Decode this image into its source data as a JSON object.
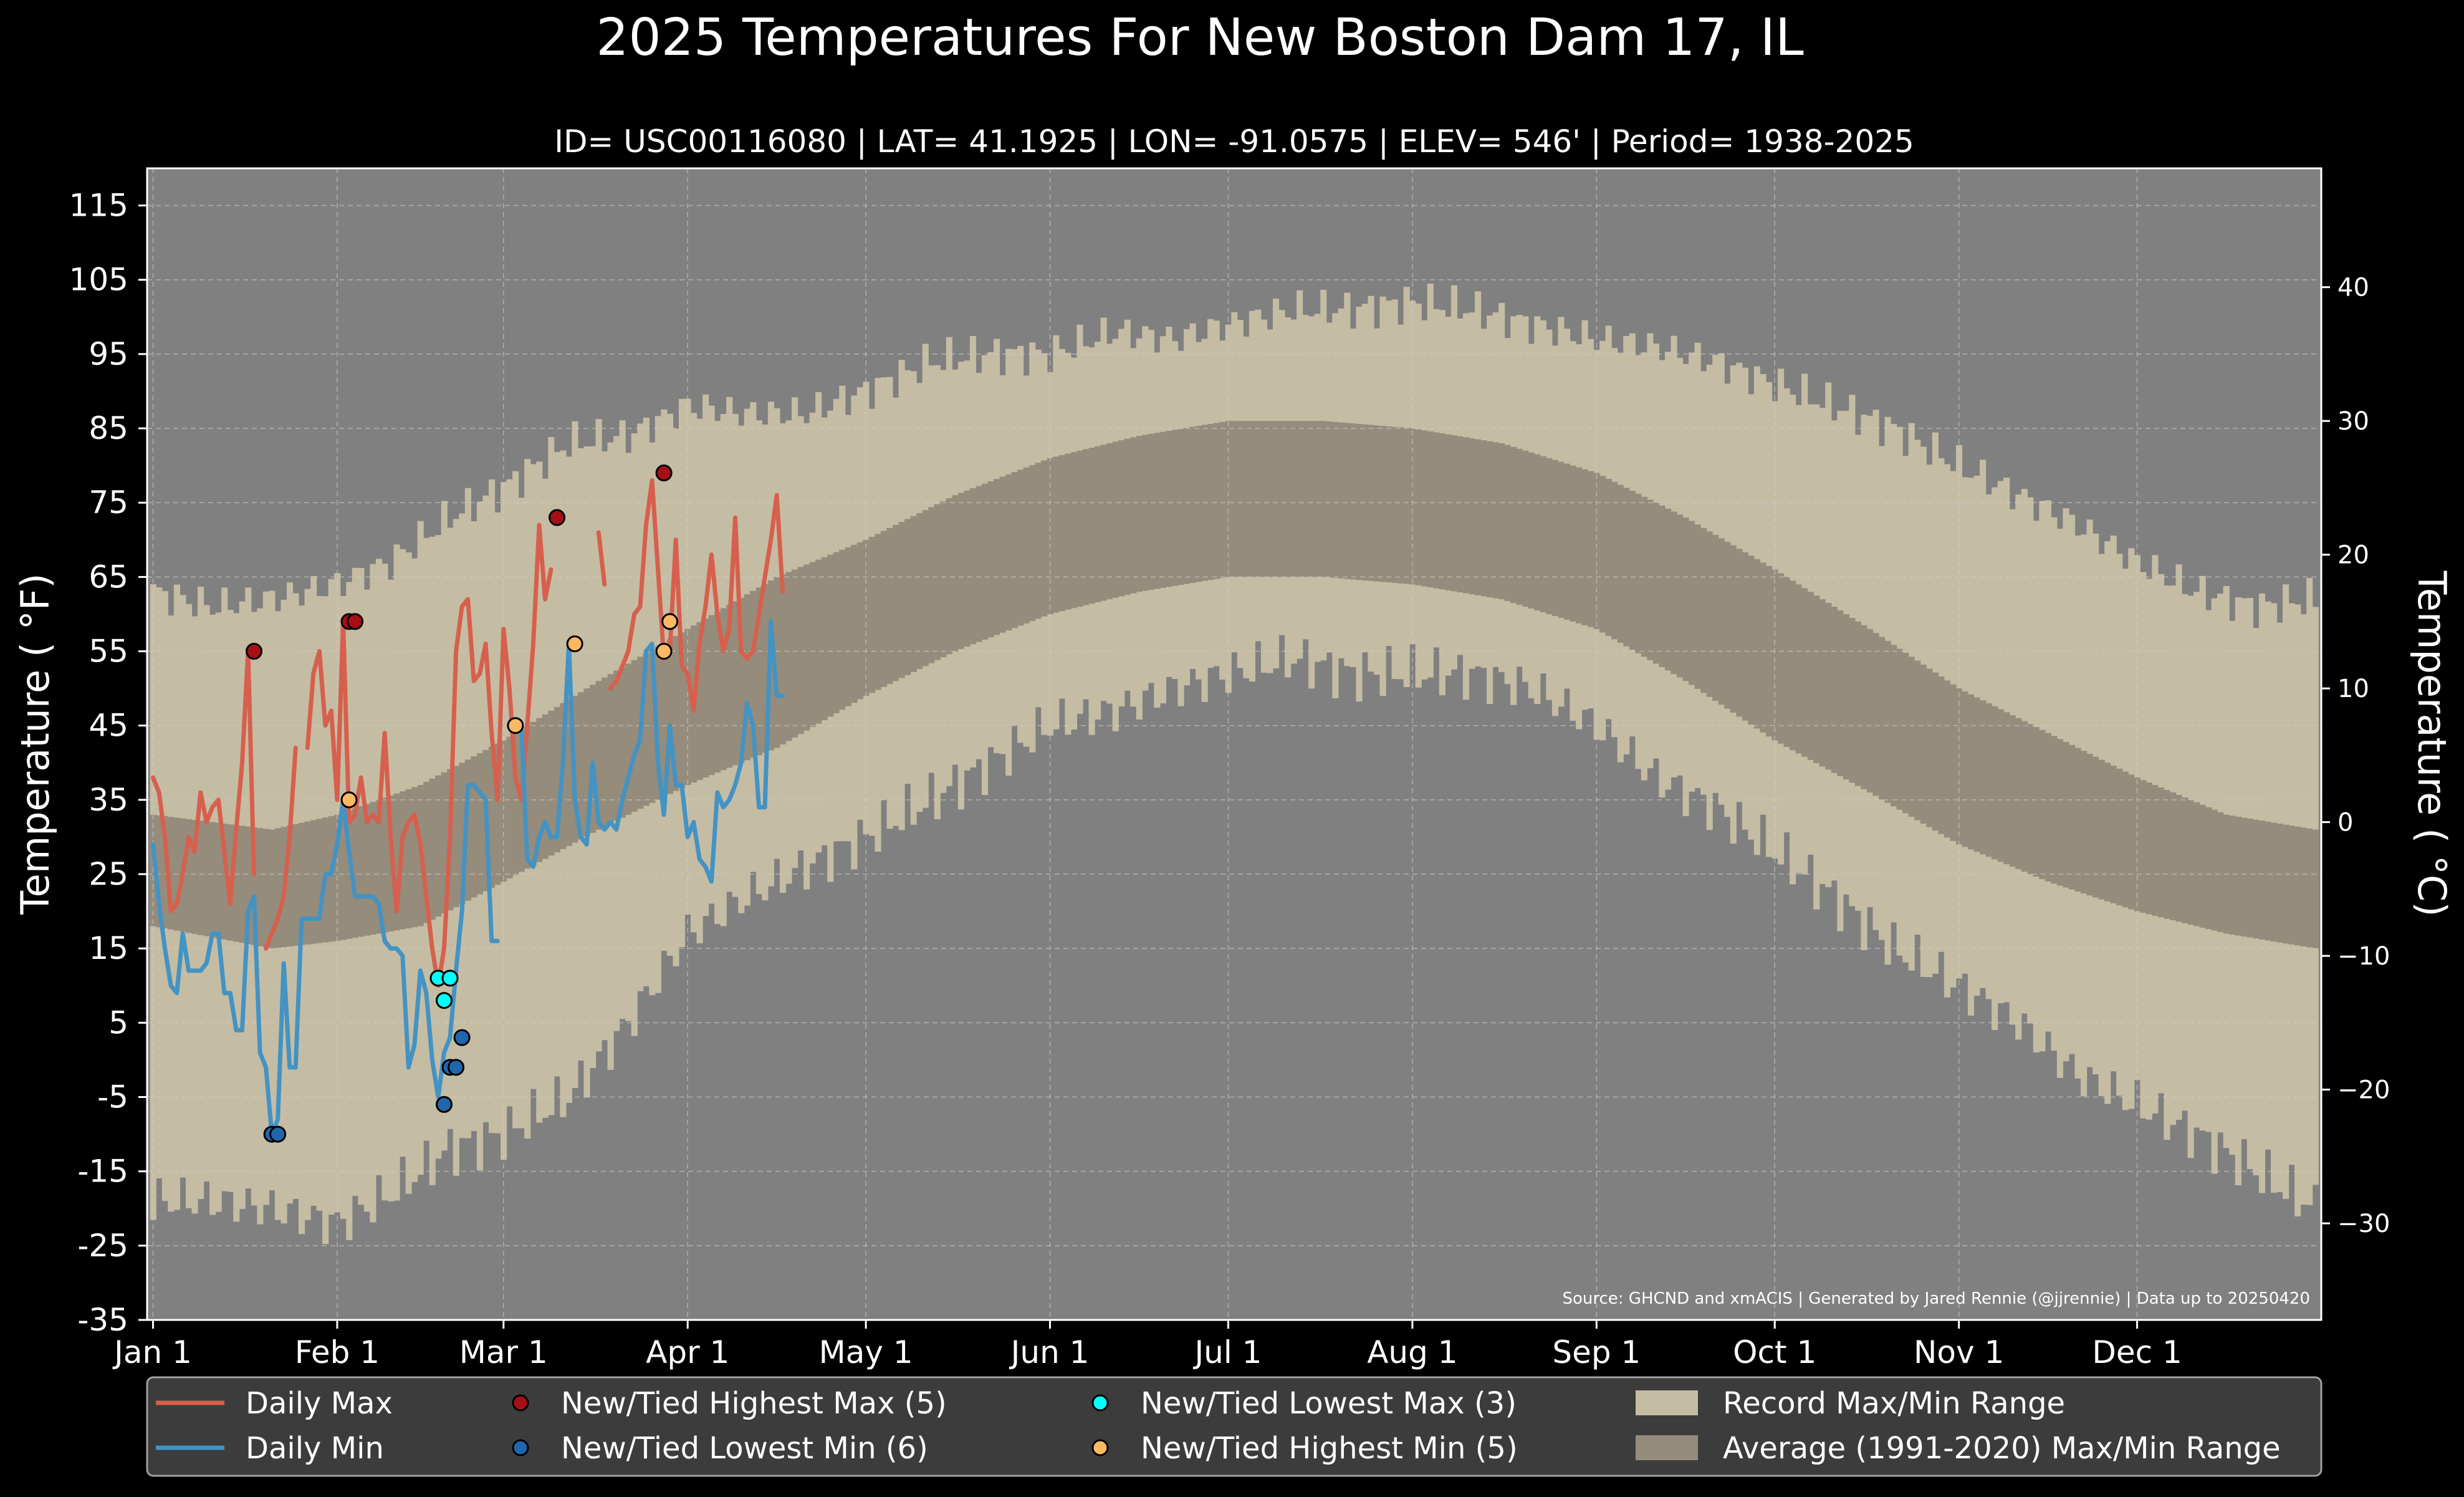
{
  "chart_data": {
    "type": "line",
    "title": "2025 Temperatures For New Boston Dam 17, IL",
    "subtitle": "ID= USC00116080 | LAT= 41.1925 | LON= -91.0575 | ELEV= 546' | Period= 1938-2025",
    "ylabel": "Temperature ($^\\circ$F)",
    "ylabel_display": "Temperature ( °F)",
    "ylabel_right_display": "Temperature ( °C)",
    "source_text": "Source: GHCND and xmACIS | Generated by Jared Rennie (@jjrennie) | Data up to 20250420",
    "ylim": [
      -35,
      120
    ],
    "xlim_day": [
      -1,
      365
    ],
    "y_ticks": [
      "115",
      "105",
      "95",
      "85",
      "75",
      "65",
      "55",
      "45",
      "35",
      "25",
      "15",
      "5",
      "-5",
      "-15",
      "-25",
      "-35"
    ],
    "y_tick_values": [
      115,
      105,
      95,
      85,
      75,
      65,
      55,
      45,
      35,
      25,
      15,
      5,
      -5,
      -15,
      -25,
      -35
    ],
    "y_ticks_celsius": [
      "40",
      "30",
      "20",
      "10",
      "0",
      "−10",
      "−20",
      "−30"
    ],
    "y_tick_celsius_values": [
      40,
      30,
      20,
      10,
      0,
      -10,
      -20,
      -30
    ],
    "x_ticks": [
      "Jan 1",
      "Feb 1",
      "Mar 1",
      "Apr 1",
      "May 1",
      "Jun 1",
      "Jul 1",
      "Aug 1",
      "Sep 1",
      "Oct 1",
      "Nov 1",
      "Dec 1"
    ],
    "x_tick_days": [
      0,
      31,
      59,
      90,
      120,
      151,
      181,
      212,
      243,
      273,
      304,
      334
    ],
    "grid": true,
    "legend_position": "bottom",
    "colors": {
      "background": "#000000",
      "plot_background": "#808080",
      "record_range": "#c5bca4",
      "normal_range": "#958c7c",
      "daily_max": "#d6604d",
      "daily_min": "#4393c3",
      "highest_max": "#a50f15",
      "lowest_min": "#2166ac",
      "lowest_max": "#00ffff",
      "highest_min": "#fdb863",
      "legend_bg": "#3c3c3c"
    },
    "record_envelope_days": [
      0,
      10,
      20,
      31,
      40,
      50,
      59,
      70,
      80,
      90,
      100,
      110,
      120,
      131,
      141,
      151,
      162,
      172,
      181,
      192,
      202,
      212,
      222,
      232,
      243,
      253,
      263,
      273,
      283,
      293,
      304,
      314,
      324,
      334,
      344,
      354,
      364
    ],
    "record_max": [
      63,
      61,
      62,
      64,
      67,
      73,
      77,
      83,
      84,
      88,
      87,
      87,
      90,
      94,
      95,
      95,
      98,
      97,
      99,
      101,
      101,
      102,
      101,
      99,
      97,
      96,
      94,
      91,
      88,
      85,
      80,
      76,
      72,
      67,
      63,
      61,
      62
    ],
    "record_min": [
      -19,
      -19,
      -20,
      -22,
      -18,
      -12,
      -10,
      -5,
      5,
      17,
      22,
      26,
      30,
      35,
      40,
      45,
      47,
      50,
      52,
      54,
      52,
      52,
      52,
      50,
      45,
      38,
      34,
      28,
      22,
      15,
      10,
      5,
      -2,
      -6,
      -10,
      -15,
      -20
    ],
    "normal_max_days": [
      0,
      20,
      31,
      45,
      59,
      75,
      90,
      105,
      120,
      135,
      151,
      166,
      181,
      197,
      212,
      227,
      243,
      258,
      273,
      289,
      304,
      319,
      334,
      349,
      364
    ],
    "normal_max": [
      33,
      31,
      33,
      37,
      43,
      51,
      58,
      65,
      70,
      76,
      81,
      84,
      86,
      86,
      85,
      83,
      79,
      73,
      66,
      58,
      50,
      44,
      38,
      33,
      31
    ],
    "normal_min": [
      18,
      15,
      16,
      18,
      24,
      31,
      37,
      42,
      49,
      55,
      60,
      63,
      65,
      65,
      64,
      62,
      58,
      51,
      43,
      36,
      29,
      24,
      20,
      17,
      15
    ],
    "series": [
      {
        "name": "Daily Max",
        "x_days": [
          0,
          1,
          2,
          3,
          4,
          5,
          6,
          7,
          8,
          9,
          10,
          11,
          12,
          13,
          14,
          15,
          16,
          17,
          18,
          null,
          19,
          20,
          21,
          22,
          23,
          24,
          25,
          26,
          27,
          28,
          29,
          30,
          31,
          32,
          33,
          34,
          35,
          36,
          37,
          38,
          39,
          40,
          41,
          42,
          43,
          44,
          45,
          46,
          47,
          48,
          49,
          50,
          51,
          52,
          53,
          54,
          55,
          56,
          57,
          58,
          59,
          60,
          61,
          62,
          63,
          64,
          65,
          66,
          67,
          68,
          69,
          70,
          null,
          75,
          76,
          null,
          77,
          78,
          79,
          80,
          81,
          82,
          83,
          84,
          85,
          86,
          87,
          88,
          89,
          90,
          91,
          92,
          93,
          94,
          95,
          96,
          97,
          98,
          99,
          100,
          101,
          102,
          103,
          104,
          105,
          106,
          107,
          108,
          109
        ],
        "values": [
          38,
          36,
          30,
          20,
          21,
          25,
          30,
          28,
          36,
          32,
          34,
          35,
          28,
          21,
          31,
          40,
          55,
          25,
          null,
          null,
          15,
          17,
          19,
          22,
          30,
          42,
          null,
          42,
          52,
          55,
          45,
          47,
          35,
          59,
          32,
          33,
          38,
          32,
          33,
          32,
          44,
          30,
          20,
          30,
          32,
          33,
          29,
          22,
          15,
          10,
          15,
          30,
          55,
          61,
          62,
          51,
          52,
          56,
          44,
          35,
          58,
          50,
          38,
          35,
          45,
          56,
          72,
          62,
          66,
          null,
          null,
          null,
          null,
          71,
          64,
          null,
          50,
          51,
          53,
          55,
          60,
          61,
          72,
          78,
          66,
          54,
          55,
          70,
          53,
          52,
          47,
          56,
          61,
          68,
          60,
          55,
          58,
          73,
          55,
          54,
          55,
          60,
          65,
          70,
          76,
          63,
          null,
          null,
          null
        ],
        "values_note": "null marks a gap in the line"
      },
      {
        "name": "Daily Min",
        "x_days": [
          0,
          1,
          2,
          3,
          4,
          5,
          6,
          7,
          8,
          9,
          10,
          11,
          12,
          13,
          14,
          15,
          16,
          17,
          18,
          19,
          20,
          21,
          22,
          23,
          24,
          25,
          26,
          27,
          28,
          29,
          30,
          31,
          32,
          33,
          34,
          35,
          36,
          37,
          38,
          39,
          40,
          41,
          42,
          43,
          44,
          45,
          46,
          47,
          48,
          49,
          50,
          51,
          52,
          53,
          54,
          55,
          56,
          57,
          58,
          59,
          60,
          61,
          62,
          63,
          64,
          65,
          66,
          67,
          68,
          69,
          70,
          71,
          72,
          73,
          74,
          75,
          76,
          77,
          78,
          79,
          80,
          81,
          82,
          83,
          84,
          85,
          86,
          87,
          88,
          89,
          90,
          91,
          92,
          93,
          94,
          95,
          96,
          97,
          98,
          99,
          100,
          101,
          102,
          103,
          104,
          105,
          106,
          107,
          108,
          109
        ],
        "values": [
          29,
          21,
          15,
          10,
          9,
          17,
          12,
          12,
          12,
          13,
          17,
          17,
          9,
          9,
          4,
          4,
          20,
          22,
          1,
          -1,
          -10,
          -8,
          13,
          -1,
          -1,
          19,
          19,
          19,
          19,
          25,
          25,
          29,
          35,
          28,
          22,
          22,
          22,
          22,
          21,
          16,
          15,
          15,
          14,
          -1,
          2,
          12,
          9,
          0,
          -5,
          1,
          3,
          12,
          20,
          37,
          37,
          36,
          35,
          16,
          16,
          null,
          null,
          null,
          45,
          27,
          26,
          30,
          32,
          30,
          30,
          40,
          56,
          35,
          30,
          29,
          40,
          32,
          31,
          32,
          31,
          35,
          38,
          41,
          43,
          55,
          56,
          40,
          33,
          45,
          37,
          37,
          30,
          32,
          27,
          26,
          24,
          36,
          34,
          35,
          37,
          40,
          48,
          45,
          34,
          34,
          59,
          49,
          49,
          null,
          null,
          null
        ]
      }
    ],
    "record_points": [
      {
        "name": "New/Tied Highest Max (5)",
        "x_days": [
          17,
          33,
          34,
          68,
          86
        ],
        "values": [
          55,
          59,
          59,
          73,
          79
        ]
      },
      {
        "name": "New/Tied Lowest Min (6)",
        "x_days": [
          20,
          21,
          49,
          50,
          51,
          52
        ],
        "values": [
          -10,
          -10,
          -6,
          -1,
          -1,
          3
        ]
      },
      {
        "name": "New/Tied Lowest Max (3)",
        "x_days": [
          48,
          49,
          50
        ],
        "values": [
          11,
          8,
          11
        ]
      },
      {
        "name": "New/Tied Highest Min (5)",
        "x_days": [
          33,
          61,
          71,
          86,
          87
        ],
        "values": [
          35,
          45,
          56,
          55,
          59
        ]
      }
    ]
  },
  "legend": {
    "items": [
      {
        "label": "Daily Max",
        "kind": "line",
        "color": "#d6604d"
      },
      {
        "label": "Daily Min",
        "kind": "line",
        "color": "#4393c3"
      },
      {
        "label": "New/Tied Highest Max (5)",
        "kind": "dot",
        "color": "#a50f15"
      },
      {
        "label": "New/Tied Lowest Min (6)",
        "kind": "dot",
        "color": "#2166ac"
      },
      {
        "label": "New/Tied Lowest Max (3)",
        "kind": "dot",
        "color": "#00ffff"
      },
      {
        "label": "New/Tied Highest Min (5)",
        "kind": "dot",
        "color": "#fdb863"
      },
      {
        "label": "Record Max/Min Range",
        "kind": "box",
        "color": "#c5bca4"
      },
      {
        "label": "Average (1991-2020) Max/Min Range",
        "kind": "box",
        "color": "#958c7c"
      }
    ]
  }
}
